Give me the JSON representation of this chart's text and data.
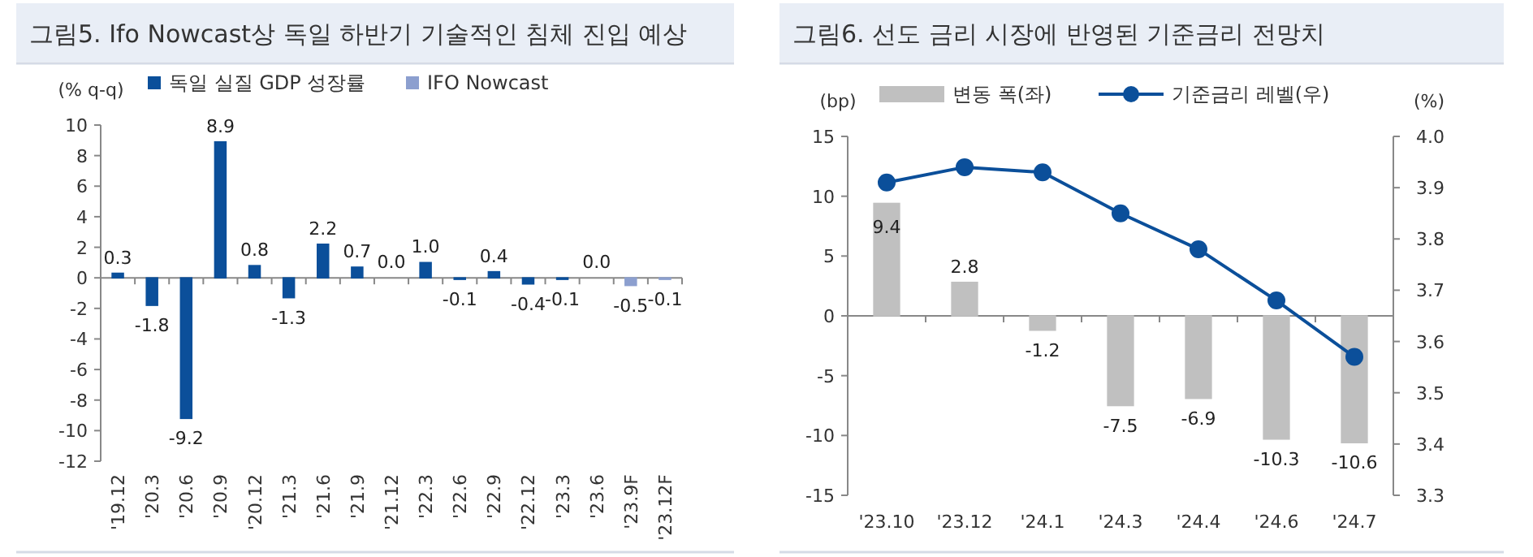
{
  "chart_data": [
    {
      "type": "bar",
      "title": "그림5. Ifo Nowcast상 독일 하반기 기술적인 침체 진입 예상",
      "ylabel": "(% q-q)",
      "categories": [
        "'19.12",
        "'20.3",
        "'20.6",
        "'20.9",
        "'20.12",
        "'21.3",
        "'21.6",
        "'21.9",
        "'21.12",
        "'22.3",
        "'22.6",
        "'22.9",
        "'22.12",
        "'23.3",
        "'23.6",
        "'23.9F",
        "'23.12F"
      ],
      "series": [
        {
          "name": "독일 실질 GDP 성장률",
          "color": "#0b4f9a",
          "values": [
            0.3,
            -1.8,
            -9.2,
            8.9,
            0.8,
            -1.3,
            2.2,
            0.7,
            0.0,
            1.0,
            -0.1,
            0.4,
            -0.4,
            -0.1,
            0.0,
            null,
            null
          ],
          "value_labels": [
            "0.3",
            "-1.8",
            "-9.2",
            "8.9",
            "0.8",
            "-1.3",
            "2.2",
            "0.7",
            "0.0",
            "1.0",
            "-0.1",
            "0.4",
            "-0.4",
            "-0.1",
            "0.0",
            null,
            null
          ]
        },
        {
          "name": "IFO Nowcast",
          "color": "#8c9fcf",
          "values": [
            null,
            null,
            null,
            null,
            null,
            null,
            null,
            null,
            null,
            null,
            null,
            null,
            null,
            null,
            null,
            -0.5,
            -0.1
          ],
          "value_labels": [
            null,
            null,
            null,
            null,
            null,
            null,
            null,
            null,
            null,
            null,
            null,
            null,
            null,
            null,
            null,
            "-0.5",
            "-0.1"
          ]
        }
      ],
      "ylim": [
        -12,
        10
      ],
      "yticks": [
        -12,
        -10,
        -8,
        -6,
        -4,
        -2,
        0,
        2,
        4,
        6,
        8,
        10
      ],
      "legend": "top"
    },
    {
      "type": "bar",
      "title": "그림6. 선도 금리 시장에 반영된 기준금리 전망치",
      "ylabel": "(bp)",
      "y2label": "(%)",
      "categories": [
        "'23.10",
        "'23.12",
        "'24.1",
        "'24.3",
        "'24.4",
        "'24.6",
        "'24.7"
      ],
      "series": [
        {
          "name": "변동 폭(좌)",
          "color": "#c0c0c0",
          "values": [
            9.4,
            2.8,
            -1.2,
            -7.5,
            -6.9,
            -10.3,
            -10.6
          ],
          "value_labels": [
            "9.4",
            "2.8",
            "-1.2",
            "-7.5",
            "-6.9",
            "-10.3",
            "-10.6"
          ]
        },
        {
          "name": "기준금리 레벨(우)",
          "type": "line",
          "axis": "y2",
          "marker": "circle",
          "color": "#0b4f9a",
          "values": [
            3.91,
            3.94,
            3.93,
            3.85,
            3.78,
            3.68,
            3.57
          ]
        }
      ],
      "ylim": [
        -15,
        15
      ],
      "yticks": [
        -15,
        -10,
        -5,
        0,
        5,
        10,
        15
      ],
      "y2lim": [
        3.3,
        4.0
      ],
      "y2ticks": [
        {
          "value": 3.3,
          "label": "3.3"
        },
        {
          "value": 3.4,
          "label": "3.4"
        },
        {
          "value": 3.5,
          "label": "3.5"
        },
        {
          "value": 3.6,
          "label": "3.6"
        },
        {
          "value": 3.7,
          "label": "3.7"
        },
        {
          "value": 3.8,
          "label": "3.8"
        },
        {
          "value": 3.9,
          "label": "3.9"
        },
        {
          "value": 4.0,
          "label": "4.0"
        }
      ],
      "legend": "top"
    }
  ]
}
